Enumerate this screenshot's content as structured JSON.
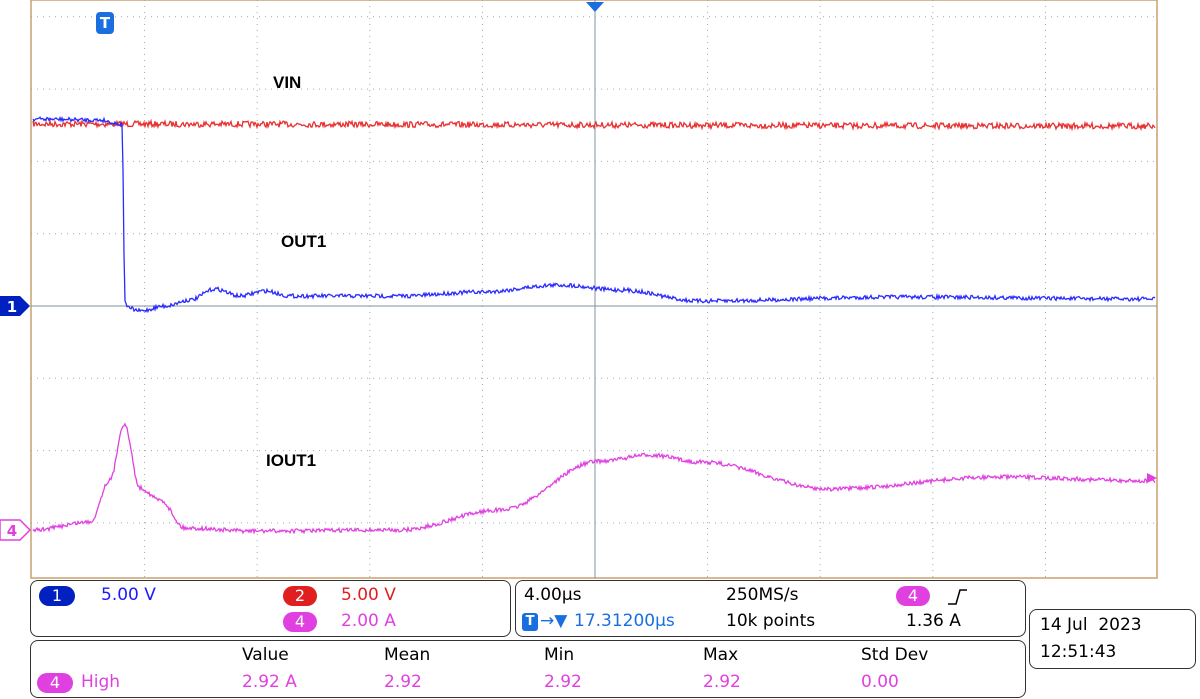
{
  "waveform_labels": [
    "VIN",
    "OUT1",
    "IOUT1"
  ],
  "trigger_marker": "T",
  "channel_markers": [
    "1",
    "4"
  ],
  "vertical": {
    "ch1": {
      "badge": "1",
      "scale": "5.00 V"
    },
    "ch2": {
      "badge": "2",
      "scale": "5.00 V"
    },
    "ch4": {
      "badge": "4",
      "scale": "2.00 A"
    }
  },
  "horizontal": {
    "time_per_div": "4.00µs",
    "sample_rate": "250MS/s",
    "trigger_position": "17.31200µs",
    "record_length": "10k points",
    "trigger_source": "4",
    "trigger_level": "1.36 A"
  },
  "date": "14 Jul  2023",
  "time": "12:51:43",
  "measurements": {
    "headers": [
      "Value",
      "Mean",
      "Min",
      "Max",
      "Std Dev"
    ],
    "rows": [
      {
        "source": "4",
        "name": "High",
        "value": "2.92 A",
        "mean": "2.92",
        "min": "2.92",
        "max": "2.92",
        "std_dev": "0.00"
      }
    ]
  }
}
